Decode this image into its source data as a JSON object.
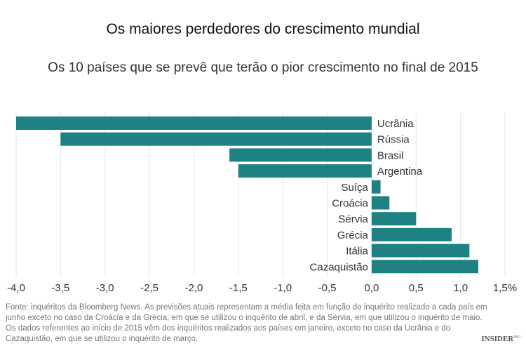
{
  "chart_data": {
    "type": "bar",
    "orientation": "horizontal",
    "title": "Os maiores perdedores do crescimento mundial",
    "subtitle": "Os 10 países que se prevê que terão o pior crescimento no final de 2015",
    "categories": [
      "Ucrânia",
      "Rússia",
      "Brasil",
      "Argentina",
      "Suíça",
      "Croácia",
      "Sérvia",
      "Grécia",
      "Itália",
      "Cazaquistão"
    ],
    "values": [
      -4.0,
      -3.5,
      -1.6,
      -1.5,
      0.1,
      0.2,
      0.5,
      0.9,
      1.1,
      1.2
    ],
    "xlim": [
      -4.0,
      1.5
    ],
    "xticks": [
      "-4,0",
      "-3,5",
      "-3,0",
      "-2,5",
      "-2,0",
      "-1,5",
      "-1,0",
      "-0,5",
      "0,0",
      "0,5",
      "1,0",
      "1,5%"
    ],
    "xtick_values": [
      -4.0,
      -3.5,
      -3.0,
      -2.5,
      -2.0,
      -1.5,
      -1.0,
      -0.5,
      0.0,
      0.5,
      1.0,
      1.5
    ],
    "grid": "vertical",
    "bar_color": "#1e8285",
    "grid_color": "#e6e6e6"
  },
  "footnote": "Fonte: inquéritos da Bloomberg News. As previsões atuais representam a média feita em função do inquérito realizado a cada país em junho exceto no caso da Croácia e da Grécia, em que se utilizou o inquérito de abril, e da Sérvia, em que utilizou o inquérito de maio. Os dados referentes ao início de 2015 vêm dos inquéritos realizados aos países em janeiro, exceto no caso da Ucrânia e do Cazaquistão, em que se utilizou o inquérito de março.",
  "logo": {
    "text": "INSIDER",
    "sup": "PRO"
  }
}
